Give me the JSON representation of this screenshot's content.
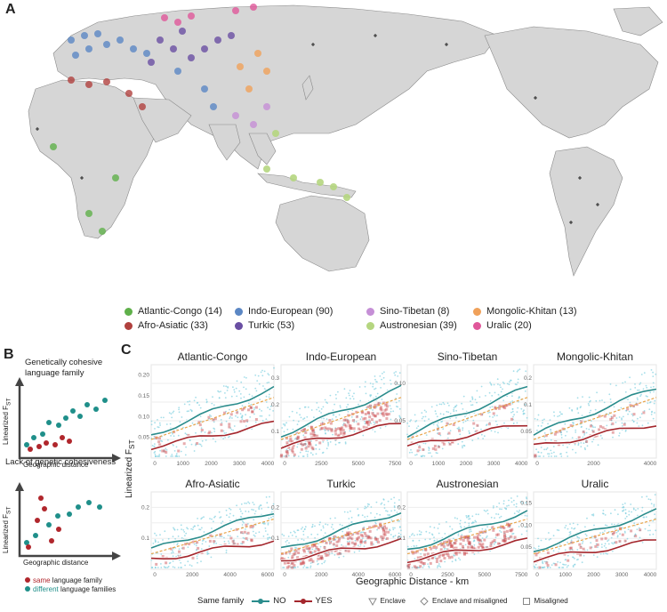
{
  "panel_a": {
    "letter": "A",
    "legend": [
      {
        "label": "Atlantic-Congo (14)",
        "color": "#5fb04a"
      },
      {
        "label": "Afro-Asiatic (33)",
        "color": "#b0413e"
      },
      {
        "label": "Indo-European (90)",
        "color": "#5b87c4"
      },
      {
        "label": "Turkic (53)",
        "color": "#6a4fa3"
      },
      {
        "label": "Sino-Tibetan (8)",
        "color": "#c58fd6"
      },
      {
        "label": "Austronesian (39)",
        "color": "#b5d680"
      },
      {
        "label": "Mongolic-Khitan (13)",
        "color": "#f0a15a"
      },
      {
        "label": "Uralic (20)",
        "color": "#e0579a"
      }
    ]
  },
  "panel_b": {
    "letter": "B",
    "top_title_1": "Genetically cohesive",
    "top_title_2": "language family",
    "bottom_title": "Lack of genetic cohesiveness",
    "ylabel": "Linearized F",
    "ylabel_sub": "ST",
    "xlabel": "Geographic distance",
    "legend_same_word": "same",
    "legend_same_rest": "language family",
    "legend_diff_word": "different",
    "legend_diff_rest": "language families",
    "color_same": "#b0262c",
    "color_diff": "#1f8f8a"
  },
  "panel_c": {
    "letter": "C",
    "ylabel": "Linearized F",
    "ylabel_sub": "ST",
    "xlabel": "Geographic Distance - km",
    "legend_title": "Same family",
    "legend_no": "NO",
    "legend_yes": "YES",
    "legend_enclave": "Enclave",
    "legend_enclave_mis": "Enclave and misaligned",
    "legend_misaligned": "Misaligned",
    "color_no": "#2a8c8c",
    "color_yes": "#a4262c",
    "color_fit": "#e8a44a"
  },
  "chart_data": [
    {
      "type": "scatter",
      "title": "Atlantic-Congo",
      "x_ticks": [
        "0",
        "1000",
        "2000",
        "3000",
        "4000"
      ],
      "y_ticks": [
        "0.05",
        "0.10",
        "0.15",
        "0.20"
      ]
    },
    {
      "type": "scatter",
      "title": "Indo-European",
      "x_ticks": [
        "0",
        "2500",
        "5000",
        "7500"
      ],
      "y_ticks": [
        "0.1",
        "0.2",
        "0.3"
      ]
    },
    {
      "type": "scatter",
      "title": "Sino-Tibetan",
      "x_ticks": [
        "0",
        "1000",
        "2000",
        "3000",
        "4000"
      ],
      "y_ticks": [
        "0.05",
        "0.10"
      ]
    },
    {
      "type": "scatter",
      "title": "Mongolic-Khitan",
      "x_ticks": [
        "0",
        "2000",
        "4000"
      ],
      "y_ticks": [
        "0.05",
        "0.1",
        "0.2"
      ]
    },
    {
      "type": "scatter",
      "title": "Afro-Asiatic",
      "x_ticks": [
        "0",
        "2000",
        "4000",
        "6000"
      ],
      "y_ticks": [
        "0.1",
        "0.2"
      ]
    },
    {
      "type": "scatter",
      "title": "Turkic",
      "x_ticks": [
        "0",
        "2000",
        "4000",
        "6000"
      ],
      "y_ticks": [
        "0.1",
        "0.2"
      ]
    },
    {
      "type": "scatter",
      "title": "Austronesian",
      "x_ticks": [
        "0",
        "2500",
        "5000",
        "7500"
      ],
      "y_ticks": [
        "0.1",
        "0.2"
      ]
    },
    {
      "type": "scatter",
      "title": "Uralic",
      "x_ticks": [
        "0",
        "1000",
        "2000",
        "3000",
        "4000"
      ],
      "y_ticks": [
        "0.05",
        "0.10",
        "0.15"
      ]
    }
  ]
}
